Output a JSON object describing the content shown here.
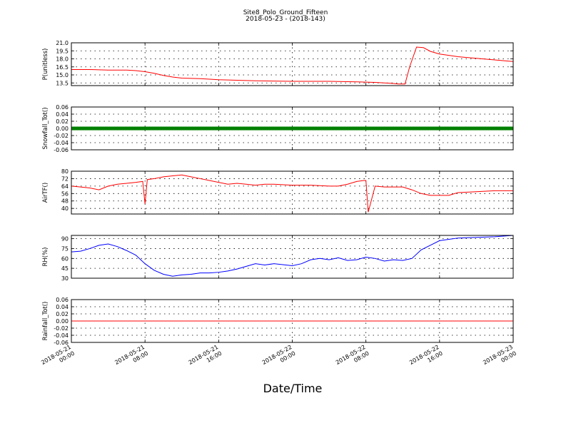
{
  "title": "Site8_Polo_Ground_Fifteen",
  "subtitle": "2018-05-23 - (2018-143)",
  "xlabel": "Date/Time",
  "chart_data": {
    "type": "line",
    "x_ticks": [
      {
        "line1": "2018-05-21",
        "line2": "00:00"
      },
      {
        "line1": "2018-05-21",
        "line2": "08:00"
      },
      {
        "line1": "2018-05-21",
        "line2": "16:00"
      },
      {
        "line1": "2018-05-22",
        "line2": "00:00"
      },
      {
        "line1": "2018-05-22",
        "line2": "08:00"
      },
      {
        "line1": "2018-05-22",
        "line2": "16:00"
      },
      {
        "line1": "2018-05-23",
        "line2": "00:00"
      }
    ],
    "xlim": [
      "2018-05-21 00:00",
      "2018-05-23 00:00"
    ],
    "grid": true,
    "panels": [
      {
        "ylabel": "P(unitless)",
        "ylim": [
          13.0,
          21.0
        ],
        "yticks": [
          "13.5",
          "15.0",
          "16.5",
          "18.0",
          "19.5",
          "21.0"
        ],
        "color": "#ff0000",
        "series": {
          "x": [
            "2018-05-21 00:00",
            "2018-05-21 02:00",
            "2018-05-21 04:00",
            "2018-05-21 06:00",
            "2018-05-21 07:00",
            "2018-05-21 08:00",
            "2018-05-21 09:00",
            "2018-05-21 10:00",
            "2018-05-21 11:00",
            "2018-05-21 12:00",
            "2018-05-21 14:00",
            "2018-05-21 16:00",
            "2018-05-21 20:00",
            "2018-05-22 00:00",
            "2018-05-22 04:00",
            "2018-05-22 07:00",
            "2018-05-22 09:00",
            "2018-05-22 11:00",
            "2018-05-22 11:30",
            "2018-05-22 12:15",
            "2018-05-22 12:45",
            "2018-05-22 13:30",
            "2018-05-22 14:15",
            "2018-05-22 15:00",
            "2018-05-22 16:00",
            "2018-05-22 18:00",
            "2018-05-22 20:00",
            "2018-05-22 22:00",
            "2018-05-23 00:00"
          ],
          "y": [
            16.0,
            16.0,
            15.9,
            15.9,
            15.8,
            15.6,
            15.3,
            14.9,
            14.6,
            14.4,
            14.3,
            14.1,
            13.9,
            13.8,
            13.8,
            13.7,
            13.6,
            13.4,
            13.3,
            13.3,
            16.5,
            20.2,
            20.1,
            19.4,
            18.9,
            18.4,
            18.1,
            17.8,
            17.5
          ]
        }
      },
      {
        "ylabel": "Snowfall_Tot()",
        "ylim": [
          -0.06,
          0.06
        ],
        "yticks": [
          "-0.06",
          "-0.04",
          "-0.02",
          "0.00",
          "0.02",
          "0.04",
          "0.06"
        ],
        "color": "#008000",
        "marker": "dot",
        "series": {
          "x": [
            "2018-05-21 00:00",
            "2018-05-23 00:00"
          ],
          "y": [
            0.0,
            0.0
          ]
        }
      },
      {
        "ylabel": "AirTF()",
        "ylim": [
          34,
          80
        ],
        "yticks": [
          "40",
          "48",
          "56",
          "64",
          "72",
          "80"
        ],
        "color": "#ff0000",
        "series": {
          "x": [
            "2018-05-21 00:00",
            "2018-05-21 01:00",
            "2018-05-21 02:00",
            "2018-05-21 03:00",
            "2018-05-21 04:00",
            "2018-05-21 05:00",
            "2018-05-21 06:00",
            "2018-05-21 07:00",
            "2018-05-21 07:45",
            "2018-05-21 08:00",
            "2018-05-21 08:15",
            "2018-05-21 09:00",
            "2018-05-21 10:00",
            "2018-05-21 11:00",
            "2018-05-21 12:00",
            "2018-05-21 13:00",
            "2018-05-21 14:00",
            "2018-05-21 15:00",
            "2018-05-21 16:00",
            "2018-05-21 17:00",
            "2018-05-21 18:00",
            "2018-05-21 19:00",
            "2018-05-21 20:00",
            "2018-05-21 21:00",
            "2018-05-21 22:00",
            "2018-05-22 00:00",
            "2018-05-22 02:00",
            "2018-05-22 04:00",
            "2018-05-22 05:00",
            "2018-05-22 06:00",
            "2018-05-22 07:00",
            "2018-05-22 07:45",
            "2018-05-22 08:00",
            "2018-05-22 08:15",
            "2018-05-22 09:00",
            "2018-05-22 10:00",
            "2018-05-22 11:00",
            "2018-05-22 12:00",
            "2018-05-22 13:00",
            "2018-05-22 14:00",
            "2018-05-22 15:00",
            "2018-05-22 16:00",
            "2018-05-22 17:00",
            "2018-05-22 18:00",
            "2018-05-22 20:00",
            "2018-05-22 22:00",
            "2018-05-23 00:00"
          ],
          "y": [
            64,
            63,
            62,
            60,
            64,
            66,
            67,
            68,
            69,
            45,
            71,
            72,
            74,
            75,
            76,
            74,
            72,
            70,
            68,
            66,
            67,
            66,
            65,
            66,
            66,
            65,
            65,
            64,
            64,
            66,
            69,
            70,
            70,
            36,
            64,
            63,
            63,
            63,
            60,
            56,
            54,
            54,
            54,
            57,
            58,
            59,
            59
          ]
        }
      },
      {
        "ylabel": "RH(%)",
        "ylim": [
          30,
          95
        ],
        "yticks": [
          "30",
          "45",
          "60",
          "75",
          "90"
        ],
        "color": "#0000ff",
        "series": {
          "x": [
            "2018-05-21 00:00",
            "2018-05-21 01:00",
            "2018-05-21 02:00",
            "2018-05-21 03:00",
            "2018-05-21 04:00",
            "2018-05-21 05:00",
            "2018-05-21 06:00",
            "2018-05-21 07:00",
            "2018-05-21 08:00",
            "2018-05-21 09:00",
            "2018-05-21 10:00",
            "2018-05-21 11:00",
            "2018-05-21 12:00",
            "2018-05-21 13:00",
            "2018-05-21 14:00",
            "2018-05-21 15:00",
            "2018-05-21 16:00",
            "2018-05-21 17:00",
            "2018-05-21 18:00",
            "2018-05-21 19:00",
            "2018-05-21 20:00",
            "2018-05-21 21:00",
            "2018-05-21 22:00",
            "2018-05-22 00:00",
            "2018-05-22 01:00",
            "2018-05-22 02:00",
            "2018-05-22 03:00",
            "2018-05-22 04:00",
            "2018-05-22 05:00",
            "2018-05-22 06:00",
            "2018-05-22 07:00",
            "2018-05-22 08:00",
            "2018-05-22 09:00",
            "2018-05-22 10:00",
            "2018-05-22 11:00",
            "2018-05-22 12:00",
            "2018-05-22 13:00",
            "2018-05-22 14:00",
            "2018-05-22 15:00",
            "2018-05-22 16:00",
            "2018-05-22 18:00",
            "2018-05-22 20:00",
            "2018-05-22 22:00",
            "2018-05-23 00:00"
          ],
          "y": [
            70,
            71,
            75,
            80,
            82,
            78,
            72,
            65,
            52,
            42,
            36,
            33,
            35,
            36,
            38,
            38,
            39,
            41,
            44,
            48,
            52,
            50,
            52,
            49,
            52,
            58,
            60,
            58,
            61,
            57,
            58,
            62,
            60,
            56,
            58,
            57,
            60,
            73,
            80,
            87,
            91,
            92,
            93,
            95
          ]
        }
      },
      {
        "ylabel": "Rainfall_Tot()",
        "ylim": [
          -0.06,
          0.06
        ],
        "yticks": [
          "-0.06",
          "-0.04",
          "-0.02",
          "0.00",
          "0.02",
          "0.04",
          "0.06"
        ],
        "color": "#ff0000",
        "series": {
          "x": [
            "2018-05-21 00:00",
            "2018-05-23 00:00"
          ],
          "y": [
            0.0,
            0.0
          ]
        }
      }
    ]
  }
}
